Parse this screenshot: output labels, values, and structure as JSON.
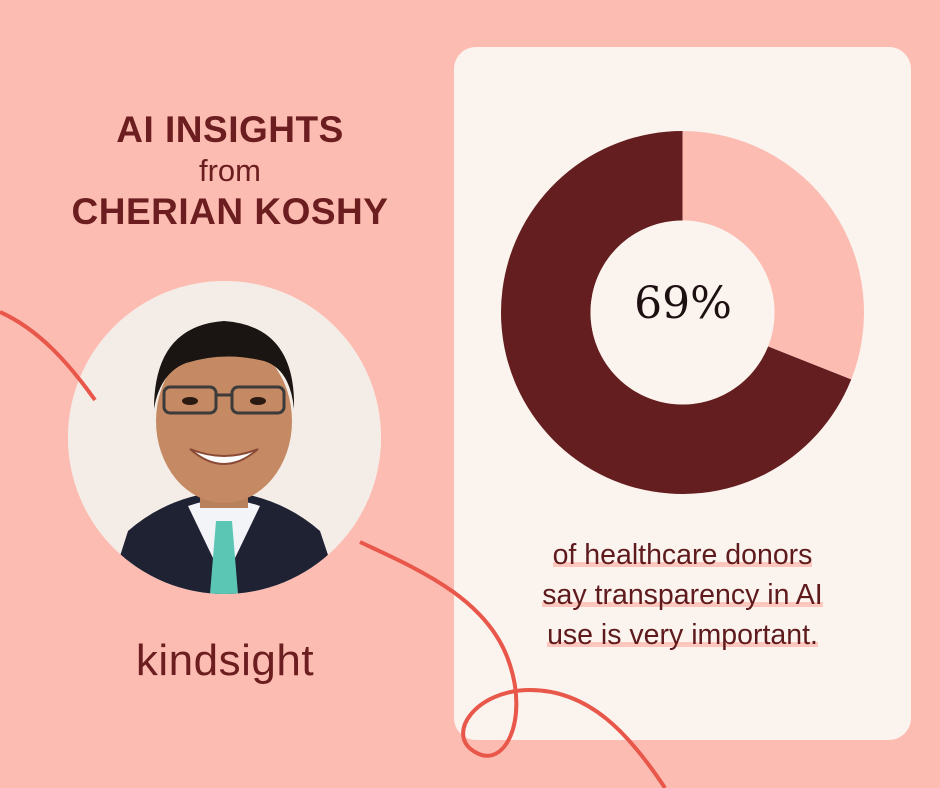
{
  "heading": {
    "line1": "AI INSIGHTS",
    "line2": "from",
    "line3": "CHERIAN KOSHY"
  },
  "logo": {
    "text": "kindsight"
  },
  "colors": {
    "background": "#fdbcb2",
    "card": "#faf3ee",
    "accent_dark": "#6b1d1f",
    "donut_filled": "#651e1f",
    "donut_remaining": "#fdbcb2",
    "curve": "#e8574a"
  },
  "chart_data": {
    "type": "pie",
    "categories": [
      "",
      ""
    ],
    "values": [
      69,
      31
    ],
    "center_label": "69%",
    "caption": [
      "of healthcare donors",
      "say transparency in AI",
      "use is very important."
    ]
  }
}
